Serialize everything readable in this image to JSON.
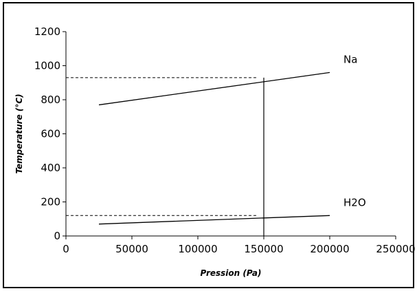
{
  "chart_data": {
    "type": "line",
    "xlabel": "Pression (Pa)",
    "ylabel": "Temperature (°C)",
    "xlim": [
      0,
      250000
    ],
    "ylim": [
      0,
      1200
    ],
    "xticks": [
      0,
      50000,
      100000,
      150000,
      200000,
      250000
    ],
    "yticks": [
      0,
      200,
      400,
      600,
      800,
      1000,
      1200
    ],
    "grid": false,
    "legend": "none",
    "series": [
      {
        "name": "Na",
        "x": [
          25000,
          200000
        ],
        "y": [
          770,
          960
        ],
        "color": "#000000"
      },
      {
        "name": "H2O",
        "x": [
          25000,
          200000
        ],
        "y": [
          70,
          120
        ],
        "color": "#000000"
      }
    ],
    "annotations": [
      {
        "kind": "dashed-horizontal",
        "y": 930,
        "x_from": 0,
        "x_to": 145000
      },
      {
        "kind": "dashed-horizontal",
        "y": 120,
        "x_from": 0,
        "x_to": 145000
      },
      {
        "kind": "solid-vertical",
        "x": 150000,
        "y_from": 0,
        "y_to": 930
      }
    ]
  }
}
